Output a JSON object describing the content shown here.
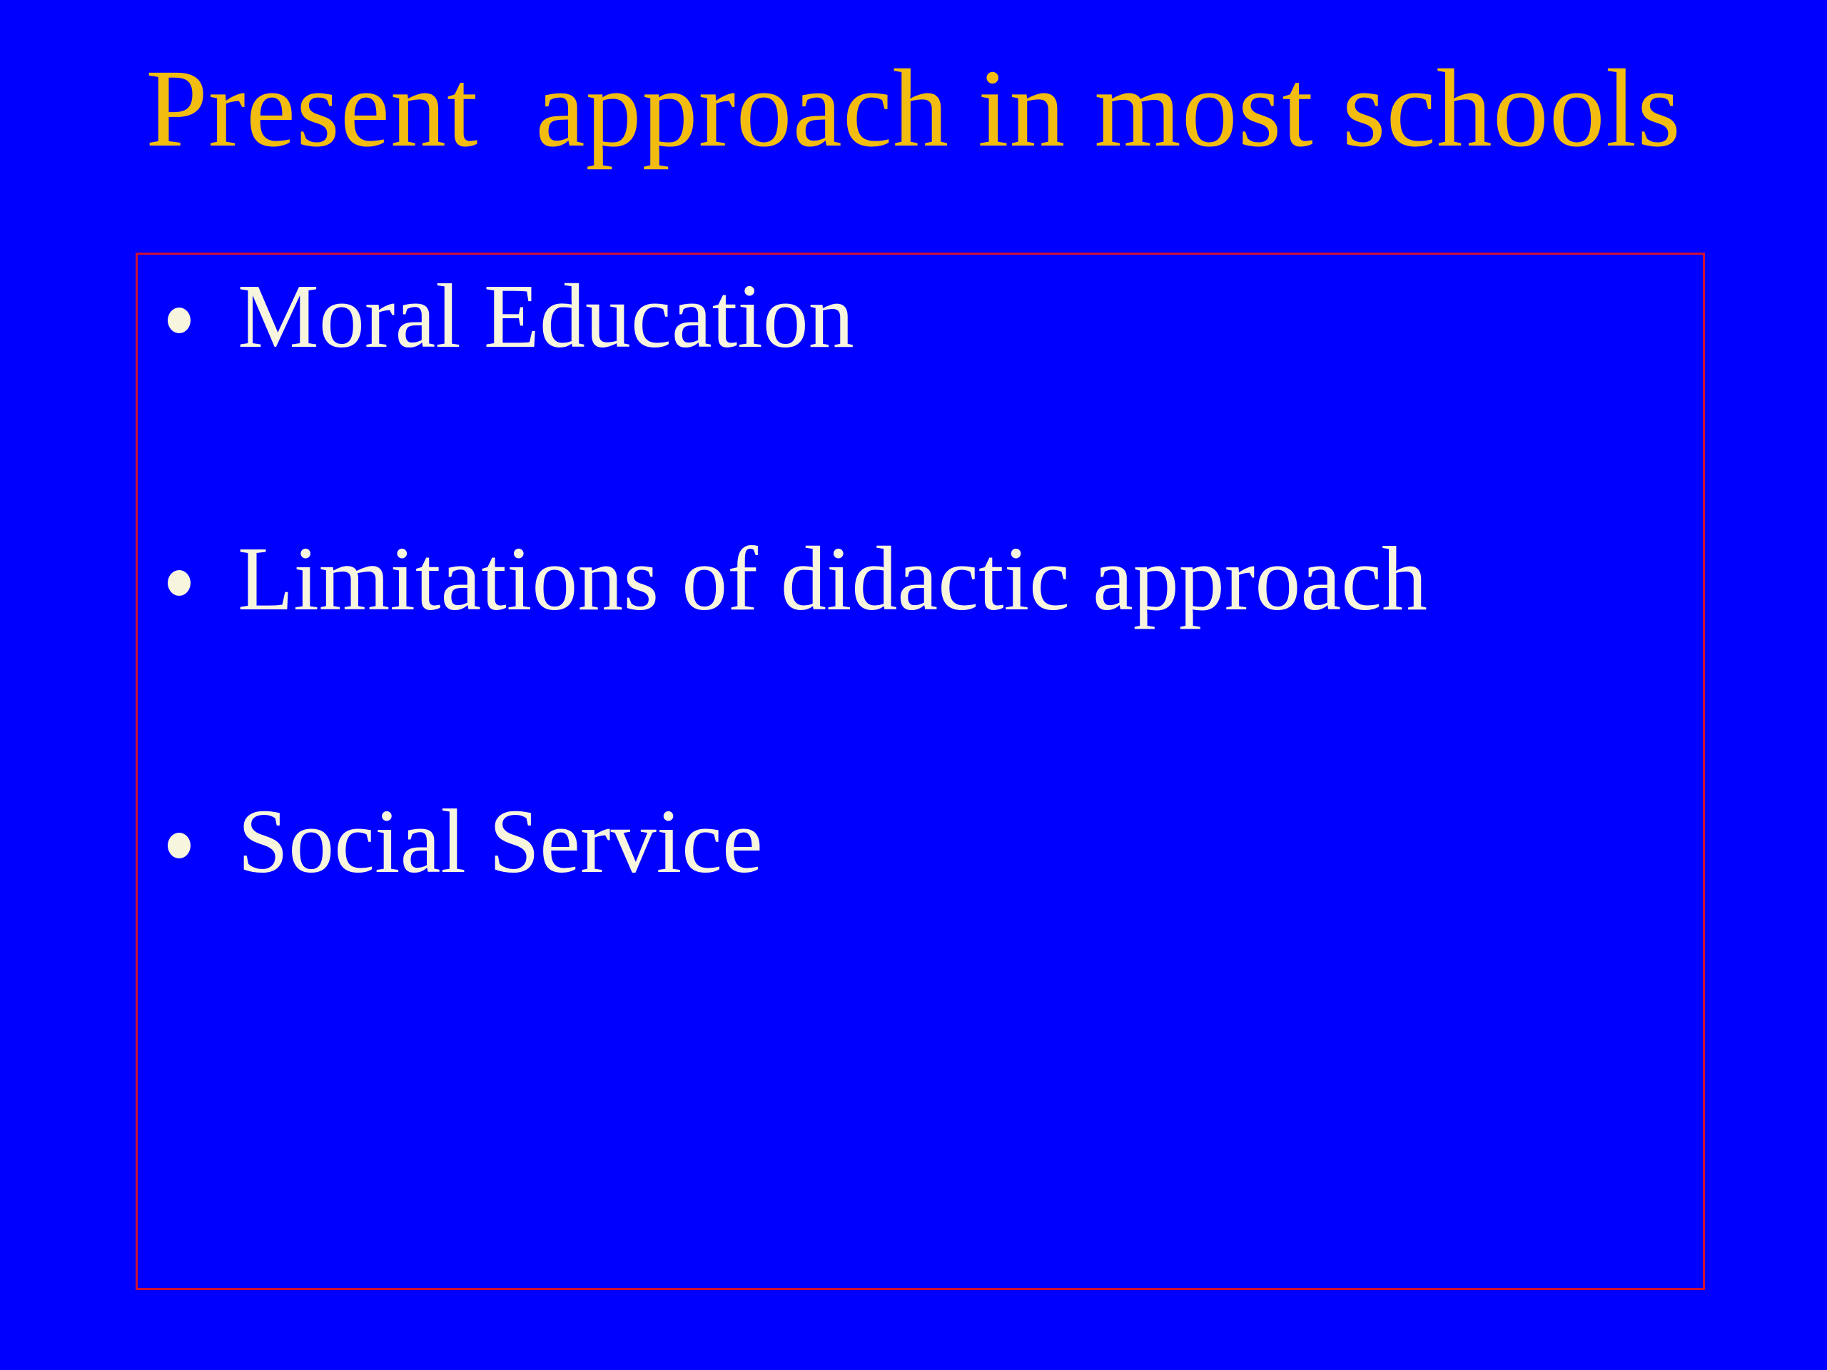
{
  "slide": {
    "title": "Present  approach in most schools",
    "bullets": [
      {
        "label": "Moral Education"
      },
      {
        "label": "Limitations of didactic approach"
      },
      {
        "label": "Social Service"
      }
    ],
    "bullet_glyph": "•",
    "colors": {
      "background": "#0000FE",
      "title_text": "#F2BD10",
      "body_text": "#F8F5DE",
      "box_border": "#CC1133"
    }
  }
}
